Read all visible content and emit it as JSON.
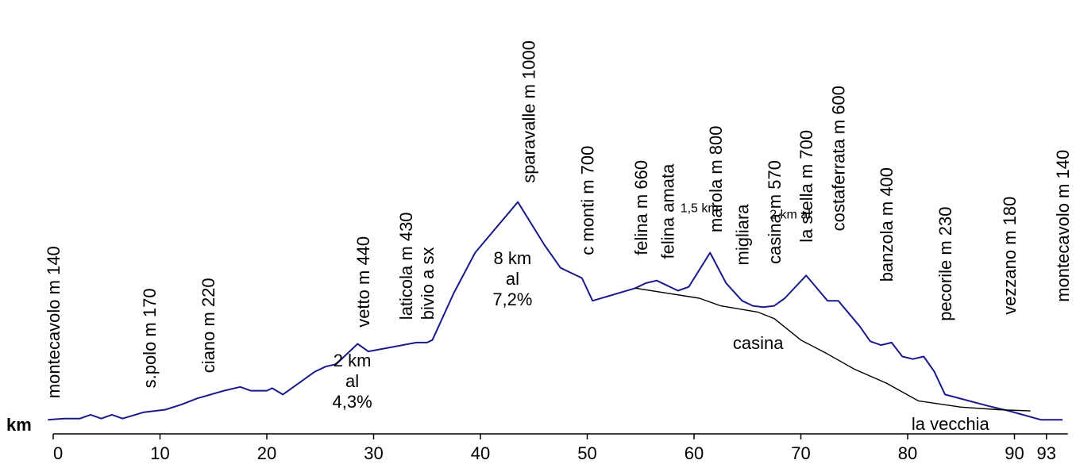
{
  "chart_data": {
    "type": "line",
    "title": "",
    "xlabel": "km",
    "ylabel": "",
    "xlim": [
      0,
      95
    ],
    "ylim": [
      0,
      1100
    ],
    "x_ticks": [
      "0",
      "10",
      "20",
      "30",
      "40",
      "50",
      "60",
      "70",
      "80",
      "90",
      "93"
    ],
    "x_tick_values": [
      0,
      10,
      20,
      30,
      40,
      50,
      60,
      70,
      80,
      90,
      93
    ],
    "grid": false,
    "legend": "none",
    "colors": {
      "main": "#1a1a8c",
      "variant": "#000000"
    },
    "series": [
      {
        "id": "main",
        "points": [
          [
            -0.5,
            140
          ],
          [
            1,
            145
          ],
          [
            2.5,
            145
          ],
          [
            3.5,
            160
          ],
          [
            4.5,
            145
          ],
          [
            5.5,
            160
          ],
          [
            6.5,
            145
          ],
          [
            8.5,
            170
          ],
          [
            10.5,
            180
          ],
          [
            12,
            200
          ],
          [
            13.5,
            225
          ],
          [
            16,
            255
          ],
          [
            17.5,
            270
          ],
          [
            18.5,
            255
          ],
          [
            20,
            255
          ],
          [
            20.5,
            265
          ],
          [
            21.5,
            240
          ],
          [
            24.5,
            330
          ],
          [
            25.5,
            350
          ],
          [
            26.5,
            360
          ],
          [
            28.5,
            440
          ],
          [
            29.5,
            410
          ],
          [
            34,
            445
          ],
          [
            35,
            445
          ],
          [
            35.5,
            455
          ],
          [
            37.5,
            640
          ],
          [
            39.5,
            800
          ],
          [
            43.5,
            1000
          ],
          [
            46,
            830
          ],
          [
            47.5,
            740
          ],
          [
            48.5,
            720
          ],
          [
            49.5,
            700
          ],
          [
            50.5,
            610
          ],
          [
            54.5,
            660
          ],
          [
            55.5,
            680
          ],
          [
            56.5,
            690
          ],
          [
            58.5,
            650
          ],
          [
            59.5,
            665
          ],
          [
            61.5,
            800
          ],
          [
            63,
            680
          ],
          [
            64.5,
            610
          ],
          [
            65.5,
            590
          ],
          [
            66.5,
            585
          ],
          [
            67.5,
            590
          ],
          [
            68.5,
            620
          ],
          [
            70.5,
            710
          ],
          [
            72.5,
            610
          ],
          [
            73.5,
            610
          ],
          [
            74.5,
            560
          ],
          [
            75.5,
            510
          ],
          [
            76.5,
            450
          ],
          [
            77.5,
            435
          ],
          [
            78.5,
            445
          ],
          [
            79.5,
            390
          ],
          [
            80.5,
            380
          ],
          [
            81.5,
            390
          ],
          [
            82.5,
            330
          ],
          [
            83.5,
            240
          ],
          [
            87.5,
            195
          ],
          [
            89.5,
            175
          ],
          [
            92.5,
            140
          ],
          [
            94.5,
            140
          ]
        ]
      },
      {
        "id": "variant",
        "points": [
          [
            54.5,
            660
          ],
          [
            60.5,
            620
          ],
          [
            62.5,
            590
          ],
          [
            66,
            565
          ],
          [
            67.5,
            540
          ],
          [
            70,
            455
          ],
          [
            72.5,
            400
          ],
          [
            75,
            340
          ],
          [
            78,
            285
          ],
          [
            81,
            215
          ],
          [
            85,
            190
          ],
          [
            88.5,
            180
          ],
          [
            91.5,
            175
          ]
        ]
      }
    ],
    "place_labels": [
      {
        "text": "montecavolo m 140",
        "x": 0,
        "y": 225
      },
      {
        "text": "s.polo m 170",
        "x": 9,
        "y": 265
      },
      {
        "text": "ciano m 220",
        "x": 14.5,
        "y": 325
      },
      {
        "text": "vetto m 440",
        "x": 29,
        "y": 505
      },
      {
        "text": "laticola m 430",
        "x": 33,
        "y": 535
      },
      {
        "text": "bivio a sx",
        "x": 35,
        "y": 535
      },
      {
        "text": "sparavalle m 1000",
        "x": 44.5,
        "y": 1075
      },
      {
        "text": "c monti m 700",
        "x": 50,
        "y": 790
      },
      {
        "text": "felina m 660",
        "x": 55,
        "y": 790
      },
      {
        "text": "felina amata",
        "x": 57.5,
        "y": 775
      },
      {
        "text": "marola m 800",
        "x": 62,
        "y": 880
      },
      {
        "text": "migliara",
        "x": 64.5,
        "y": 750
      },
      {
        "text": "casina m 570",
        "x": 67.5,
        "y": 755
      },
      {
        "text": "la stella m 700",
        "x": 70.5,
        "y": 840
      },
      {
        "text": "costaferrata m 600",
        "x": 73.5,
        "y": 885
      },
      {
        "text": "banzola m 400",
        "x": 78,
        "y": 685
      },
      {
        "text": "pecorile m 230",
        "x": 83.5,
        "y": 530
      },
      {
        "text": "vezzano m 180",
        "x": 89.5,
        "y": 555
      },
      {
        "text": "montecavolo m 140",
        "x": 94.5,
        "y": 605
      }
    ],
    "annotations": [
      {
        "lines": [
          "2 km",
          "al",
          "4,3%"
        ],
        "x": 28,
        "y": 350,
        "size": "large"
      },
      {
        "lines": [
          "8 km",
          "al",
          "7,2%"
        ],
        "x": 43,
        "y": 755,
        "size": "large"
      },
      {
        "lines": [
          "1,5 km"
        ],
        "x": 60.5,
        "y": 960,
        "size": "small"
      },
      {
        "lines": [
          "2 km al"
        ],
        "x": 69,
        "y": 935,
        "size": "small"
      },
      {
        "lines": [
          "casina"
        ],
        "x": 66,
        "y": 420,
        "size": "large"
      },
      {
        "lines": [
          "la vecchia"
        ],
        "x": 84,
        "y": 100,
        "size": "large"
      }
    ]
  }
}
